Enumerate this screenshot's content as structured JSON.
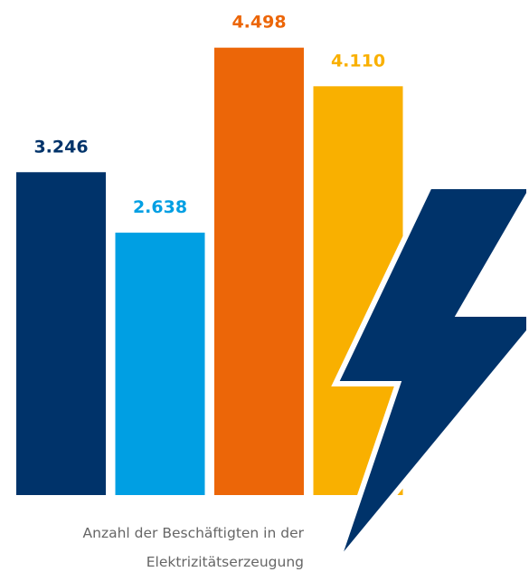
{
  "chart_data": {
    "type": "bar",
    "categories": [
      null,
      null,
      null,
      null
    ],
    "values": [
      3246,
      2638,
      4498,
      4110
    ],
    "value_labels": [
      "3.246",
      "2.638",
      "4.498",
      "4.110"
    ],
    "colors": [
      "#00336a",
      "#009fe3",
      "#ec6608",
      "#f9b000"
    ],
    "caption": [
      "Anzahl der Beschäftigten in der",
      "Elektrizitätserzeugung"
    ]
  }
}
